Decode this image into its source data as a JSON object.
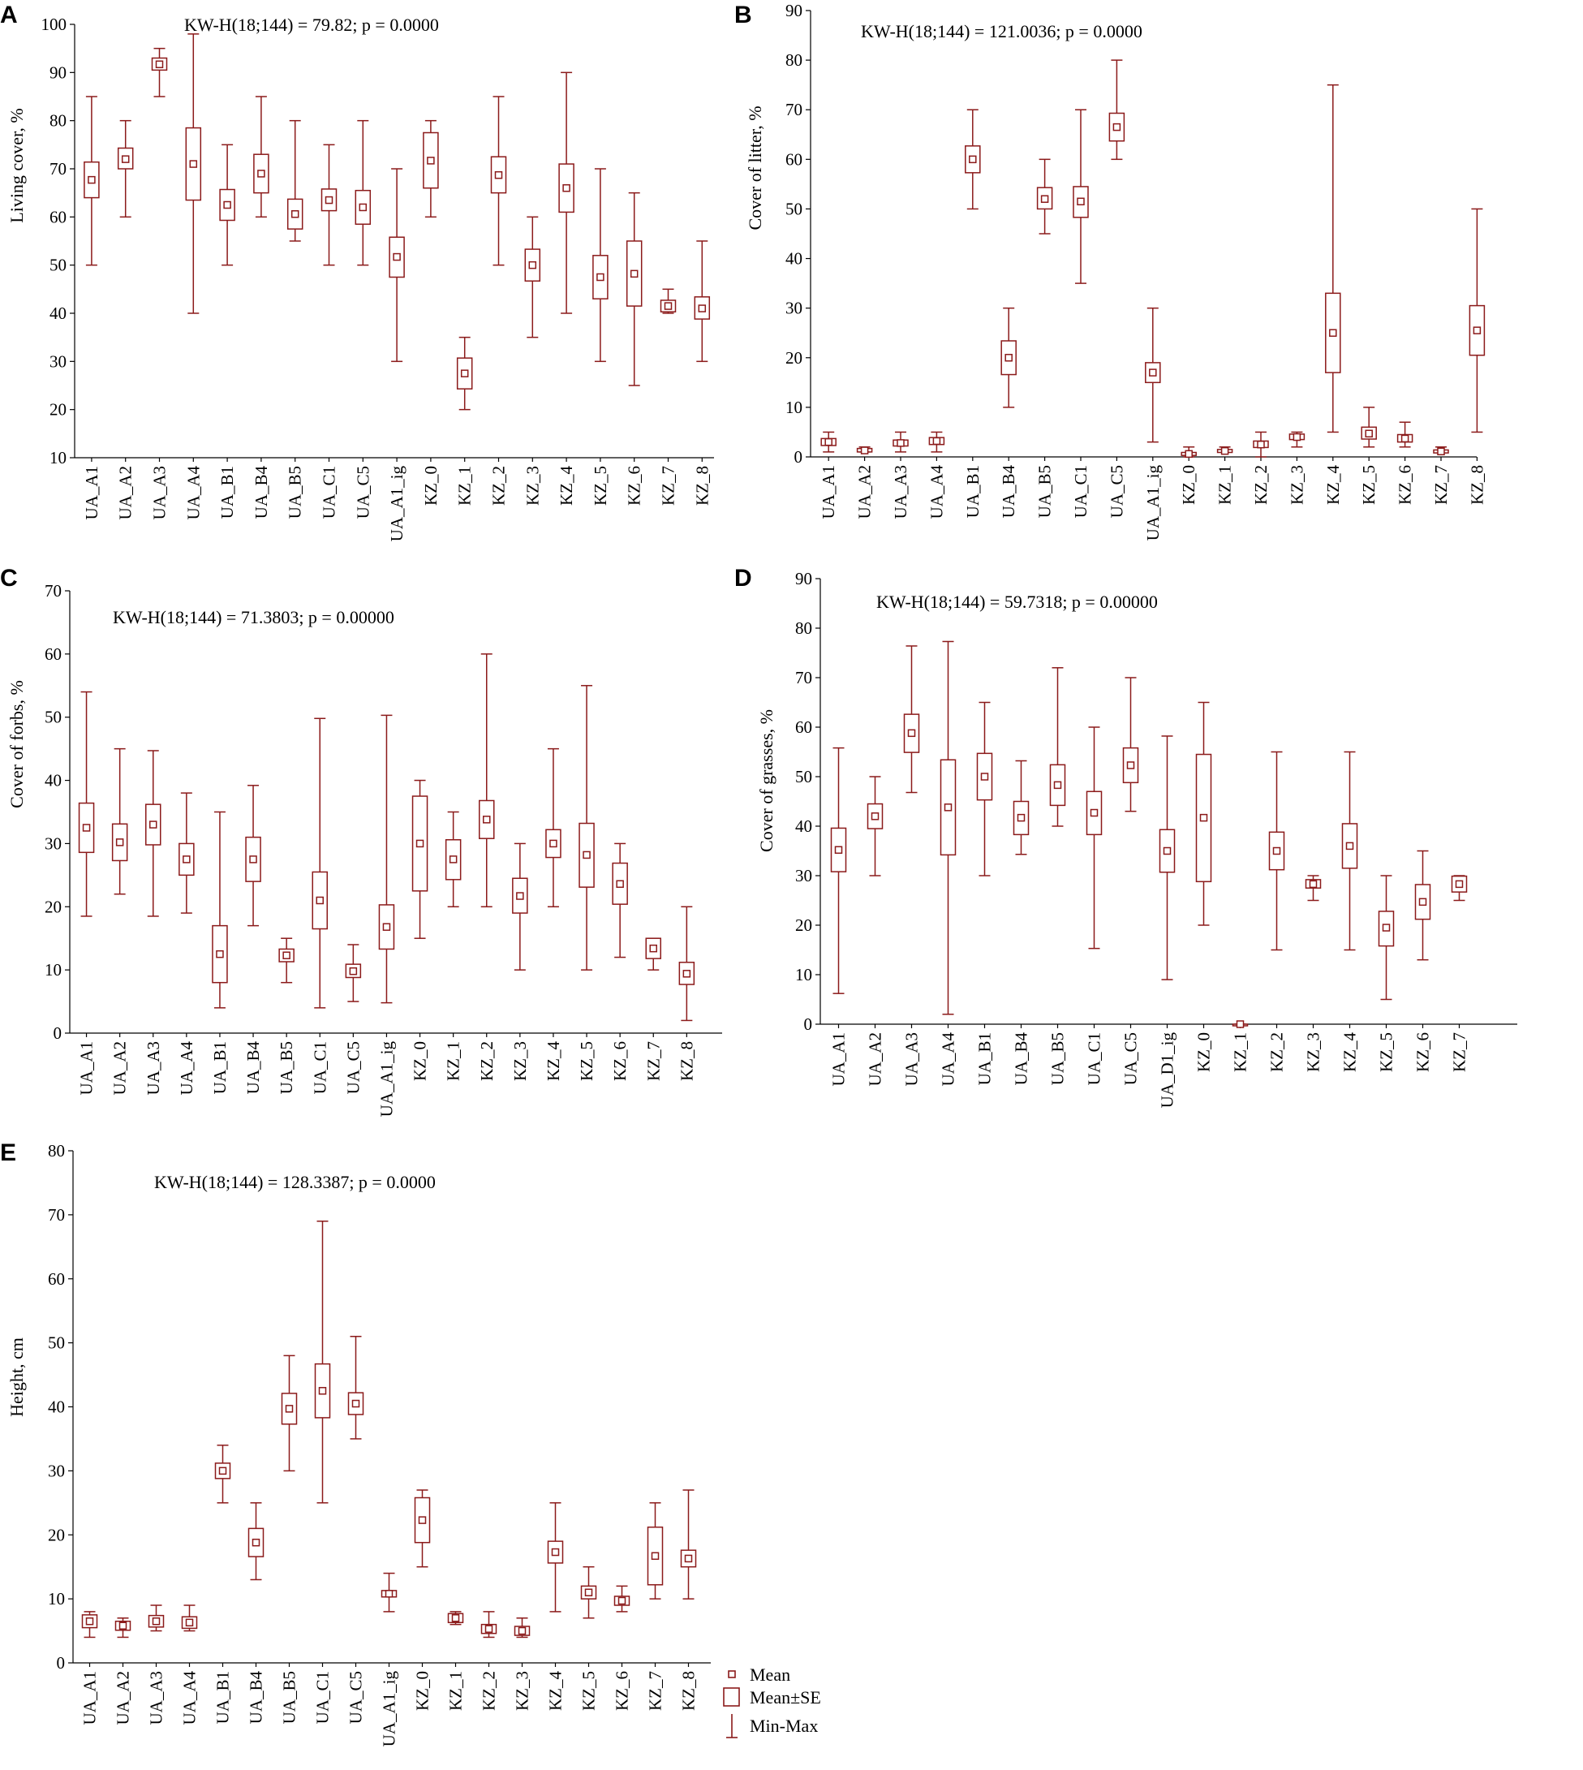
{
  "figure": {
    "box_color": "#8b1a1a"
  },
  "legend": {
    "mean": "Mean",
    "se": "Mean±SE",
    "minmax": "Min-Max"
  },
  "chart_data": [
    {
      "panel": "A",
      "type": "boxplot",
      "ylabel": "Living cover, %",
      "ylim": [
        10,
        100
      ],
      "yticks": [
        10,
        20,
        30,
        40,
        50,
        60,
        70,
        80,
        90,
        100
      ],
      "stat": "KW-H(18;144) = 79.82; p = 0.0000",
      "categories": [
        "UA_A1",
        "UA_A2",
        "UA_A3",
        "UA_A4",
        "UA_B1",
        "UA_B4",
        "UA_B5",
        "UA_C1",
        "UA_C5",
        "UA_A1_ig",
        "KZ_0",
        "KZ_1",
        "KZ_2",
        "KZ_3",
        "KZ_4",
        "KZ_5",
        "KZ_6",
        "KZ_7",
        "KZ_8"
      ],
      "mean": [
        67.7,
        72,
        91.7,
        71,
        62.5,
        69,
        60.6,
        63.5,
        62,
        51.7,
        71.7,
        27.5,
        68.7,
        50,
        66,
        47.5,
        48.2,
        41.5,
        41
      ],
      "se_low": [
        64,
        70,
        90.5,
        63.5,
        59.3,
        65,
        57.5,
        61.3,
        58.5,
        47.5,
        66,
        24.3,
        65,
        46.7,
        61,
        43,
        41.5,
        40.3,
        38.8
      ],
      "se_high": [
        71.4,
        74.3,
        93,
        78.5,
        65.7,
        73,
        63.7,
        65.8,
        65.5,
        55.8,
        77.5,
        30.7,
        72.5,
        53.3,
        71,
        52,
        55,
        42.7,
        43.4
      ],
      "min": [
        50,
        60,
        85,
        40,
        50,
        60,
        55,
        50,
        50,
        30,
        60,
        20,
        50,
        35,
        40,
        30,
        25,
        40,
        30
      ],
      "max": [
        85,
        80,
        95,
        98,
        75,
        85,
        80,
        75,
        80,
        70,
        80,
        35,
        85,
        60,
        90,
        70,
        65,
        45,
        55
      ]
    },
    {
      "panel": "B",
      "type": "boxplot",
      "ylabel": "Cover of litter, %",
      "ylim": [
        0,
        90
      ],
      "yticks": [
        0,
        10,
        20,
        30,
        40,
        50,
        60,
        70,
        80,
        90
      ],
      "stat": "KW-H(18;144) = 121.0036; p = 0.0000",
      "categories": [
        "UA_A1",
        "UA_A2",
        "UA_A3",
        "UA_A4",
        "UA_B1",
        "UA_B4",
        "UA_B5",
        "UA_C1",
        "UA_C5",
        "UA_A1_ig",
        "KZ_0",
        "KZ_1",
        "KZ_2",
        "KZ_3",
        "KZ_4",
        "KZ_5",
        "KZ_6",
        "KZ_7",
        "KZ_8"
      ],
      "mean": [
        3,
        1.3,
        2.8,
        3.2,
        60,
        20,
        52,
        51.5,
        66.5,
        17,
        0.6,
        1.2,
        2.5,
        4,
        25,
        4.7,
        3.7,
        1.1,
        25.5
      ],
      "se_low": [
        2.3,
        1,
        2.2,
        2.5,
        57.3,
        16.6,
        50,
        48.3,
        63.7,
        15,
        0.3,
        0.9,
        1.9,
        3.5,
        17,
        3.6,
        3,
        0.8,
        20.5
      ],
      "se_high": [
        3.7,
        1.7,
        3.4,
        3.9,
        62.7,
        23.4,
        54.3,
        54.5,
        69.3,
        19,
        0.9,
        1.5,
        3.2,
        4.6,
        33,
        6,
        4.5,
        1.4,
        30.5
      ],
      "min": [
        1,
        1,
        1,
        1,
        50,
        10,
        45,
        35,
        60,
        3,
        0,
        1,
        0,
        2,
        5,
        2,
        2,
        1,
        5
      ],
      "max": [
        5,
        2,
        5,
        5,
        70,
        30,
        60,
        70,
        80,
        30,
        2,
        2,
        5,
        5,
        75,
        10,
        7,
        2,
        50
      ]
    },
    {
      "panel": "C",
      "type": "boxplot",
      "ylabel": "Cover of forbs, %",
      "ylim": [
        0,
        70
      ],
      "yticks": [
        0,
        10,
        20,
        30,
        40,
        50,
        60,
        70
      ],
      "stat": "KW-H(18;144) = 71.3803; p = 0.00000",
      "categories": [
        "UA_A1",
        "UA_A2",
        "UA_A3",
        "UA_A4",
        "UA_B1",
        "UA_B4",
        "UA_B5",
        "UA_C1",
        "UA_C5",
        "UA_A1_ig",
        "KZ_0",
        "KZ_1",
        "KZ_2",
        "KZ_3",
        "KZ_4",
        "KZ_5",
        "KZ_6",
        "KZ_7",
        "KZ_8"
      ],
      "mean": [
        32.5,
        30.2,
        33,
        27.5,
        12.5,
        27.5,
        12.3,
        21,
        9.8,
        16.8,
        30,
        27.5,
        33.8,
        21.7,
        30,
        28.2,
        23.6,
        13.4,
        9.4
      ],
      "se_low": [
        28.6,
        27.3,
        29.8,
        25,
        8,
        24,
        11.3,
        16.5,
        8.8,
        13.3,
        22.5,
        24.3,
        30.8,
        19,
        27.8,
        23.1,
        20.4,
        11.8,
        7.7
      ],
      "se_high": [
        36.4,
        33.1,
        36.2,
        30,
        17,
        31,
        13.3,
        25.5,
        10.9,
        20.3,
        37.5,
        30.6,
        36.8,
        24.5,
        32.2,
        33.2,
        26.9,
        15,
        11.2
      ],
      "min": [
        18.5,
        22,
        18.5,
        19,
        4,
        17,
        8,
        4,
        5,
        4.8,
        15,
        20,
        20,
        10,
        20,
        10,
        12,
        10,
        2
      ],
      "max": [
        54,
        45,
        44.7,
        38,
        35,
        39.2,
        15,
        49.8,
        14,
        50.3,
        40,
        35,
        60,
        30,
        45,
        55,
        30,
        15,
        20
      ]
    },
    {
      "panel": "D",
      "type": "boxplot",
      "ylabel": "Cover of grasses, %",
      "ylim": [
        0,
        90
      ],
      "yticks": [
        0,
        10,
        20,
        30,
        40,
        50,
        60,
        70,
        80,
        90
      ],
      "stat": "KW-H(18;144) = 59.7318; p = 0.00000",
      "categories": [
        "UA_A1",
        "UA_A2",
        "UA_A3",
        "UA_A4",
        "UA_B1",
        "UA_B4",
        "UA_B5",
        "UA_C1",
        "UA_C5",
        "UA_D1_ig",
        "KZ_0",
        "KZ_1",
        "KZ_2",
        "KZ_3",
        "KZ_4",
        "KZ_5",
        "KZ_6",
        "KZ_7"
      ],
      "mean": [
        35.2,
        42,
        58.8,
        43.8,
        50,
        41.7,
        48.3,
        42.7,
        52.3,
        35,
        41.7,
        0,
        35,
        28.3,
        36,
        19.5,
        24.7,
        28.3
      ],
      "se_low": [
        30.8,
        39.5,
        54.9,
        34.2,
        45.3,
        38.3,
        44.2,
        38.3,
        48.8,
        30.7,
        28.8,
        0,
        31.2,
        27.5,
        31.5,
        15.8,
        21.2,
        26.7
      ],
      "se_high": [
        39.6,
        44.5,
        62.6,
        53.4,
        54.7,
        45,
        52.4,
        47,
        55.8,
        39.3,
        54.5,
        0,
        38.8,
        29.2,
        40.5,
        22.8,
        28.2,
        29.9
      ],
      "min": [
        6.2,
        30,
        46.8,
        2,
        30,
        34.3,
        40,
        15.3,
        43,
        9,
        20,
        0,
        15,
        25,
        15,
        5,
        13,
        25
      ],
      "max": [
        55.8,
        50,
        76.4,
        77.3,
        65,
        53.2,
        72,
        60,
        70,
        58.2,
        65,
        0,
        55,
        30,
        55,
        30,
        35,
        30
      ]
    },
    {
      "panel": "E",
      "type": "boxplot",
      "ylabel": "Height, cm",
      "ylim": [
        0,
        80
      ],
      "yticks": [
        0,
        10,
        20,
        30,
        40,
        50,
        60,
        70,
        80
      ],
      "stat": "KW-H(18;144) = 128.3387; p = 0.0000",
      "categories": [
        "UA_A1",
        "UA_A2",
        "UA_A3",
        "UA_A4",
        "UA_B1",
        "UA_B4",
        "UA_B5",
        "UA_C1",
        "UA_C5",
        "UA_A1_ig",
        "KZ_0",
        "KZ_1",
        "KZ_2",
        "KZ_3",
        "KZ_4",
        "KZ_5",
        "KZ_6",
        "KZ_7",
        "KZ_8"
      ],
      "mean": [
        6.5,
        5.8,
        6.5,
        6.3,
        30,
        18.8,
        39.7,
        42.5,
        40.5,
        10.8,
        22.3,
        7,
        5.3,
        5,
        17.3,
        11,
        9.7,
        16.7,
        16.3
      ],
      "se_low": [
        5.5,
        5.1,
        5.6,
        5.4,
        28.8,
        16.6,
        37.3,
        38.3,
        38.8,
        10.3,
        18.8,
        6.3,
        4.6,
        4.3,
        15.6,
        10,
        9,
        12.2,
        15
      ],
      "se_high": [
        7.5,
        6.5,
        7.4,
        7.2,
        31.2,
        21,
        42.1,
        46.7,
        42.2,
        11.3,
        25.8,
        7.7,
        6,
        5.7,
        19,
        12,
        10.4,
        21.2,
        17.6
      ],
      "min": [
        4,
        4,
        5,
        5,
        25,
        13,
        30,
        25,
        35,
        8,
        15,
        6,
        4,
        4,
        8,
        7,
        8,
        10,
        10
      ],
      "max": [
        8,
        7,
        9,
        9,
        34,
        25,
        48,
        69,
        51,
        14,
        27,
        8,
        8,
        7,
        25,
        15,
        12,
        25,
        27
      ]
    }
  ]
}
